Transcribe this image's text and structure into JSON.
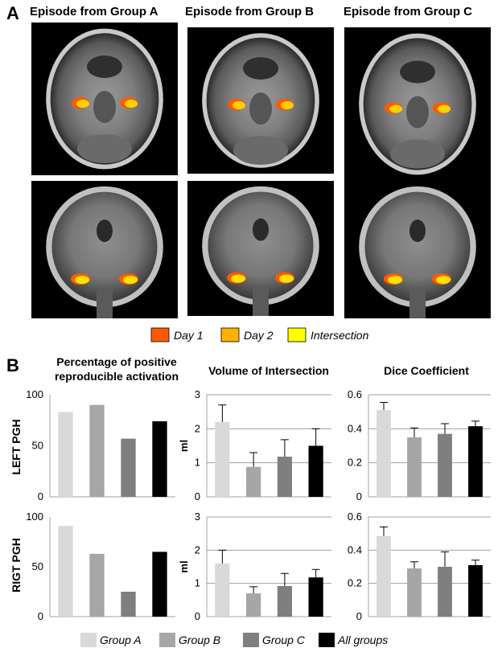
{
  "panels": {
    "a_label": "A",
    "b_label": "B"
  },
  "brain_columns": [
    {
      "title": "Episode from Group A"
    },
    {
      "title": "Episode from Group B"
    },
    {
      "title": "Episode from Group C"
    }
  ],
  "brain_legend": [
    {
      "label": "Day 1",
      "color": "#ff5a00"
    },
    {
      "label": "Day 2",
      "color": "#ffb000"
    },
    {
      "label": "Intersection",
      "color": "#ffff00"
    }
  ],
  "row_labels": [
    "LEFT PGH",
    "RIGT PGH"
  ],
  "chart_titles": [
    {
      "line1": "Percentage of positive",
      "line2": "reproducible activation"
    },
    {
      "line1": "Volume of Intersection",
      "line2": ""
    },
    {
      "line1": "Dice Coefficient",
      "line2": ""
    }
  ],
  "group_legend": [
    {
      "label": "Group A",
      "color": "#d9d9d9"
    },
    {
      "label": "Group B",
      "color": "#a6a6a6"
    },
    {
      "label": "Group C",
      "color": "#7f7f7f"
    },
    {
      "label": "All groups",
      "color": "#000000"
    }
  ],
  "chart_data": [
    {
      "type": "bar",
      "row": "LEFT PGH",
      "title": "Percentage of positive reproducible activation",
      "ylabel": "",
      "categories": [
        "Group A",
        "Group B",
        "Group C",
        "All groups"
      ],
      "values": [
        83,
        90,
        57,
        74
      ],
      "errors": null,
      "ylim": [
        0,
        100
      ],
      "yticks": [
        0,
        50,
        100
      ],
      "tick_labels": [
        "0",
        "50",
        "100"
      ],
      "gridlines": false
    },
    {
      "type": "bar",
      "row": "LEFT PGH",
      "title": "Volume of Intersection",
      "ylabel": "ml",
      "categories": [
        "Group A",
        "Group B",
        "Group C",
        "All groups"
      ],
      "values": [
        2.2,
        0.88,
        1.18,
        1.5
      ],
      "errors": [
        0.5,
        0.42,
        0.5,
        0.5
      ],
      "ylim": [
        0,
        3
      ],
      "yticks": [
        0,
        1,
        2,
        3
      ],
      "tick_labels": [
        "0",
        "1",
        "2",
        "3"
      ],
      "gridlines": true
    },
    {
      "type": "bar",
      "row": "LEFT PGH",
      "title": "Dice Coefficient",
      "ylabel": "",
      "categories": [
        "Group A",
        "Group B",
        "Group C",
        "All groups"
      ],
      "values": [
        0.51,
        0.35,
        0.37,
        0.415
      ],
      "errors": [
        0.045,
        0.055,
        0.06,
        0.03
      ],
      "ylim": [
        0,
        0.6
      ],
      "yticks": [
        0,
        0.2,
        0.4,
        0.6
      ],
      "tick_labels": [
        "0",
        "0.2",
        "0.4",
        "0.6"
      ],
      "gridlines": true
    },
    {
      "type": "bar",
      "row": "RIGT PGH",
      "title": "Percentage of positive reproducible activation",
      "ylabel": "",
      "categories": [
        "Group A",
        "Group B",
        "Group C",
        "All groups"
      ],
      "values": [
        91,
        63,
        25,
        65
      ],
      "errors": null,
      "ylim": [
        0,
        100
      ],
      "yticks": [
        0,
        50,
        100
      ],
      "tick_labels": [
        "0",
        "50",
        "100"
      ],
      "gridlines": false
    },
    {
      "type": "bar",
      "row": "RIGT PGH",
      "title": "Volume of Intersection",
      "ylabel": "ml",
      "categories": [
        "Group A",
        "Group B",
        "Group C",
        "All groups"
      ],
      "values": [
        1.6,
        0.7,
        0.92,
        1.18
      ],
      "errors": [
        0.4,
        0.2,
        0.38,
        0.24
      ],
      "ylim": [
        0,
        3
      ],
      "yticks": [
        0,
        1,
        2,
        3
      ],
      "tick_labels": [
        "0",
        "1",
        "2",
        "3"
      ],
      "gridlines": true
    },
    {
      "type": "bar",
      "row": "RIGT PGH",
      "title": "Dice Coefficient",
      "ylabel": "",
      "categories": [
        "Group A",
        "Group B",
        "Group C",
        "All groups"
      ],
      "values": [
        0.485,
        0.29,
        0.3,
        0.31
      ],
      "errors": [
        0.055,
        0.04,
        0.09,
        0.03
      ],
      "ylim": [
        0,
        0.6
      ],
      "yticks": [
        0,
        0.2,
        0.4,
        0.6
      ],
      "tick_labels": [
        "0",
        "0.2",
        "0.4",
        "0.6"
      ],
      "gridlines": true
    }
  ]
}
